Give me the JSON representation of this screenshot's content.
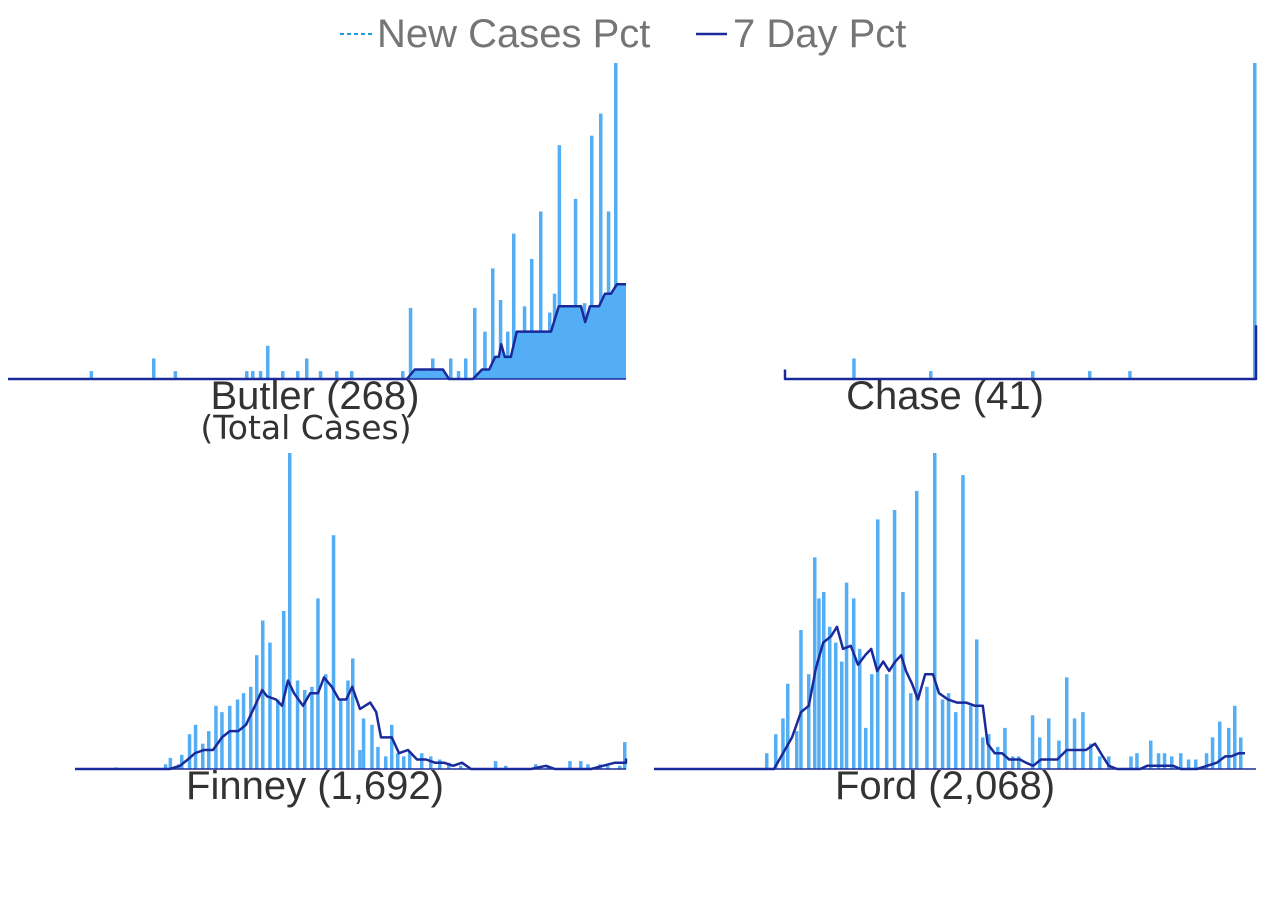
{
  "legend": {
    "items": [
      {
        "label": "New Cases Pct",
        "style": "dashed",
        "color": "#1f9bd7"
      },
      {
        "label": "7 Day Pct",
        "style": "solid",
        "color": "#1a2a9a"
      }
    ]
  },
  "total_cases_note": "(Total Cases)",
  "colors": {
    "bar": "#54aef6",
    "line": "#1a2a9a",
    "axis": "#1a2a9a",
    "legend_text": "#757575",
    "title_text": "#333333"
  },
  "chart_data": [
    {
      "type": "bar",
      "title": "Butler (268)",
      "subtitle": "(Total Cases)",
      "ylim": [
        0,
        100
      ],
      "spikes": [
        {
          "x": 0.136,
          "y": 2.5
        },
        {
          "x": 0.24,
          "y": 6.5
        },
        {
          "x": 0.276,
          "y": 2.5
        },
        {
          "x": 0.395,
          "y": 2.5
        },
        {
          "x": 0.405,
          "y": 2.5
        },
        {
          "x": 0.418,
          "y": 2.5
        },
        {
          "x": 0.43,
          "y": 10.5
        },
        {
          "x": 0.455,
          "y": 2.5
        },
        {
          "x": 0.48,
          "y": 2.5
        },
        {
          "x": 0.495,
          "y": 6.5
        },
        {
          "x": 0.518,
          "y": 2.5
        },
        {
          "x": 0.545,
          "y": 2.5
        },
        {
          "x": 0.57,
          "y": 2.5
        },
        {
          "x": 0.655,
          "y": 2.5
        },
        {
          "x": 0.668,
          "y": 22.5
        },
        {
          "x": 0.705,
          "y": 6.5
        },
        {
          "x": 0.735,
          "y": 6.5
        },
        {
          "x": 0.748,
          "y": 2.5
        },
        {
          "x": 0.76,
          "y": 6.5
        },
        {
          "x": 0.775,
          "y": 22.5
        },
        {
          "x": 0.792,
          "y": 15
        },
        {
          "x": 0.805,
          "y": 35
        },
        {
          "x": 0.818,
          "y": 25
        },
        {
          "x": 0.83,
          "y": 15
        },
        {
          "x": 0.84,
          "y": 46
        },
        {
          "x": 0.852,
          "y": 3
        },
        {
          "x": 0.858,
          "y": 23
        },
        {
          "x": 0.87,
          "y": 38
        },
        {
          "x": 0.885,
          "y": 53
        },
        {
          "x": 0.9,
          "y": 21
        },
        {
          "x": 0.908,
          "y": 27
        },
        {
          "x": 0.916,
          "y": 74
        },
        {
          "x": 0.925,
          "y": 22
        },
        {
          "x": 0.943,
          "y": 57
        },
        {
          "x": 0.958,
          "y": 24
        },
        {
          "x": 0.97,
          "y": 77
        },
        {
          "x": 0.985,
          "y": 84
        },
        {
          "x": 0.998,
          "y": 53
        },
        {
          "x": 1.01,
          "y": 100
        }
      ],
      "line": [
        [
          0.0,
          0
        ],
        [
          0.665,
          0
        ],
        [
          0.678,
          3
        ],
        [
          0.725,
          3
        ],
        [
          0.735,
          0
        ],
        [
          0.775,
          0
        ],
        [
          0.79,
          3
        ],
        [
          0.802,
          3
        ],
        [
          0.812,
          7
        ],
        [
          0.818,
          7
        ],
        [
          0.822,
          11
        ],
        [
          0.828,
          7
        ],
        [
          0.838,
          7
        ],
        [
          0.848,
          15
        ],
        [
          0.905,
          15
        ],
        [
          0.918,
          23
        ],
        [
          0.955,
          23
        ],
        [
          0.962,
          18
        ],
        [
          0.97,
          23
        ],
        [
          0.985,
          23
        ],
        [
          0.995,
          27
        ],
        [
          1.005,
          27
        ],
        [
          1.015,
          30
        ],
        [
          1.03,
          30
        ]
      ],
      "line_fill_under": true
    },
    {
      "type": "bar",
      "title": "Chase (41)",
      "ylim": [
        0,
        100
      ],
      "spikes": [
        {
          "x": 0.112,
          "y": 6.5
        },
        {
          "x": 0.24,
          "y": 2.5
        },
        {
          "x": 0.41,
          "y": 2.5
        },
        {
          "x": 0.505,
          "y": 2.5
        },
        {
          "x": 0.572,
          "y": 2.5
        },
        {
          "x": 0.955,
          "y": 100
        },
        {
          "x": 0.975,
          "y": 10
        },
        {
          "x": 0.985,
          "y": 13
        }
      ],
      "line": [
        [
          -0.115,
          3
        ],
        [
          -0.105,
          0
        ],
        [
          0.935,
          0
        ],
        [
          0.945,
          13
        ],
        [
          0.965,
          13
        ],
        [
          0.985,
          17
        ]
      ],
      "line_fill_under": true
    },
    {
      "type": "bar",
      "title": "Finney (1,692)",
      "ylim": [
        0,
        100
      ],
      "spikes": [
        {
          "x": 0.065,
          "y": 0.5
        },
        {
          "x": 0.148,
          "y": 1.5
        },
        {
          "x": 0.156,
          "y": 3.5
        },
        {
          "x": 0.17,
          "y": 1.5
        },
        {
          "x": 0.175,
          "y": 4.5
        },
        {
          "x": 0.188,
          "y": 11
        },
        {
          "x": 0.198,
          "y": 14
        },
        {
          "x": 0.21,
          "y": 8
        },
        {
          "x": 0.22,
          "y": 12
        },
        {
          "x": 0.232,
          "y": 20
        },
        {
          "x": 0.242,
          "y": 18
        },
        {
          "x": 0.255,
          "y": 20
        },
        {
          "x": 0.268,
          "y": 22
        },
        {
          "x": 0.278,
          "y": 24
        },
        {
          "x": 0.29,
          "y": 26
        },
        {
          "x": 0.3,
          "y": 36
        },
        {
          "x": 0.31,
          "y": 47
        },
        {
          "x": 0.322,
          "y": 40
        },
        {
          "x": 0.335,
          "y": 22
        },
        {
          "x": 0.345,
          "y": 50
        },
        {
          "x": 0.355,
          "y": 100
        },
        {
          "x": 0.368,
          "y": 28
        },
        {
          "x": 0.38,
          "y": 25
        },
        {
          "x": 0.392,
          "y": 26
        },
        {
          "x": 0.402,
          "y": 54
        },
        {
          "x": 0.415,
          "y": 30
        },
        {
          "x": 0.428,
          "y": 74
        },
        {
          "x": 0.44,
          "y": 22
        },
        {
          "x": 0.452,
          "y": 28
        },
        {
          "x": 0.46,
          "y": 35
        },
        {
          "x": 0.472,
          "y": 6
        },
        {
          "x": 0.478,
          "y": 16
        },
        {
          "x": 0.492,
          "y": 14
        },
        {
          "x": 0.502,
          "y": 7
        },
        {
          "x": 0.515,
          "y": 4
        },
        {
          "x": 0.525,
          "y": 14
        },
        {
          "x": 0.535,
          "y": 5
        },
        {
          "x": 0.545,
          "y": 4
        },
        {
          "x": 0.555,
          "y": 5.5
        },
        {
          "x": 0.575,
          "y": 5
        },
        {
          "x": 0.59,
          "y": 4
        },
        {
          "x": 0.605,
          "y": 3
        },
        {
          "x": 0.62,
          "y": 2
        },
        {
          "x": 0.64,
          "y": 1
        },
        {
          "x": 0.698,
          "y": 2.5
        },
        {
          "x": 0.715,
          "y": 1
        },
        {
          "x": 0.765,
          "y": 1.5
        },
        {
          "x": 0.785,
          "y": 1
        },
        {
          "x": 0.822,
          "y": 2.5
        },
        {
          "x": 0.84,
          "y": 2.5
        },
        {
          "x": 0.852,
          "y": 1.5
        },
        {
          "x": 0.872,
          "y": 1.5
        },
        {
          "x": 0.885,
          "y": 1
        },
        {
          "x": 0.905,
          "y": 1
        },
        {
          "x": 0.928,
          "y": 6.5
        },
        {
          "x": 0.942,
          "y": 4.5
        },
        {
          "x": 0.955,
          "y": 4.5
        },
        {
          "x": 0.97,
          "y": 5.5
        },
        {
          "x": 0.982,
          "y": 7
        },
        {
          "x": 0.995,
          "y": 7.5
        },
        {
          "x": 1.015,
          "y": 6
        },
        {
          "x": 1.03,
          "y": 8.5
        }
      ],
      "line": [
        [
          0.0,
          0
        ],
        [
          0.158,
          0
        ],
        [
          0.175,
          1
        ],
        [
          0.188,
          3
        ],
        [
          0.2,
          5
        ],
        [
          0.215,
          6
        ],
        [
          0.23,
          6
        ],
        [
          0.245,
          10
        ],
        [
          0.258,
          12
        ],
        [
          0.272,
          12
        ],
        [
          0.285,
          14
        ],
        [
          0.3,
          20
        ],
        [
          0.312,
          25
        ],
        [
          0.32,
          23
        ],
        [
          0.335,
          22
        ],
        [
          0.345,
          20
        ],
        [
          0.355,
          28
        ],
        [
          0.365,
          24
        ],
        [
          0.38,
          20
        ],
        [
          0.392,
          24
        ],
        [
          0.405,
          24
        ],
        [
          0.415,
          29
        ],
        [
          0.428,
          26
        ],
        [
          0.44,
          22
        ],
        [
          0.452,
          22
        ],
        [
          0.462,
          26
        ],
        [
          0.475,
          19
        ],
        [
          0.492,
          21
        ],
        [
          0.502,
          18
        ],
        [
          0.51,
          10
        ],
        [
          0.528,
          10
        ],
        [
          0.54,
          5
        ],
        [
          0.555,
          6
        ],
        [
          0.57,
          3
        ],
        [
          0.585,
          3
        ],
        [
          0.6,
          2
        ],
        [
          0.615,
          2
        ],
        [
          0.63,
          1
        ],
        [
          0.645,
          2
        ],
        [
          0.66,
          0
        ],
        [
          0.76,
          0
        ],
        [
          0.785,
          1
        ],
        [
          0.8,
          0
        ],
        [
          0.86,
          0
        ],
        [
          0.88,
          1
        ],
        [
          0.9,
          2
        ],
        [
          0.925,
          2
        ],
        [
          0.945,
          3
        ],
        [
          0.96,
          2
        ],
        [
          0.975,
          3
        ],
        [
          0.99,
          2
        ],
        [
          1.005,
          2
        ],
        [
          1.02,
          2
        ],
        [
          1.04,
          2
        ]
      ],
      "line_fill_under": false
    },
    {
      "type": "bar",
      "title": "Ford (2,068)",
      "ylim": [
        0,
        100
      ],
      "spikes": [
        {
          "x": 0.185,
          "y": 5
        },
        {
          "x": 0.2,
          "y": 11
        },
        {
          "x": 0.212,
          "y": 16
        },
        {
          "x": 0.22,
          "y": 27
        },
        {
          "x": 0.235,
          "y": 12
        },
        {
          "x": 0.242,
          "y": 44
        },
        {
          "x": 0.255,
          "y": 30
        },
        {
          "x": 0.265,
          "y": 67
        },
        {
          "x": 0.272,
          "y": 54
        },
        {
          "x": 0.28,
          "y": 56
        },
        {
          "x": 0.29,
          "y": 45
        },
        {
          "x": 0.3,
          "y": 40
        },
        {
          "x": 0.31,
          "y": 34
        },
        {
          "x": 0.318,
          "y": 59
        },
        {
          "x": 0.33,
          "y": 54
        },
        {
          "x": 0.34,
          "y": 38
        },
        {
          "x": 0.35,
          "y": 13
        },
        {
          "x": 0.36,
          "y": 30
        },
        {
          "x": 0.37,
          "y": 79
        },
        {
          "x": 0.385,
          "y": 30
        },
        {
          "x": 0.398,
          "y": 82
        },
        {
          "x": 0.412,
          "y": 56
        },
        {
          "x": 0.425,
          "y": 24
        },
        {
          "x": 0.435,
          "y": 88
        },
        {
          "x": 0.452,
          "y": 26
        },
        {
          "x": 0.465,
          "y": 100
        },
        {
          "x": 0.478,
          "y": 22
        },
        {
          "x": 0.488,
          "y": 24
        },
        {
          "x": 0.5,
          "y": 18
        },
        {
          "x": 0.512,
          "y": 93
        },
        {
          "x": 0.525,
          "y": 20
        },
        {
          "x": 0.535,
          "y": 41
        },
        {
          "x": 0.545,
          "y": 10
        },
        {
          "x": 0.555,
          "y": 11
        },
        {
          "x": 0.57,
          "y": 7
        },
        {
          "x": 0.582,
          "y": 13
        },
        {
          "x": 0.595,
          "y": 4
        },
        {
          "x": 0.605,
          "y": 4
        },
        {
          "x": 0.628,
          "y": 17
        },
        {
          "x": 0.64,
          "y": 10
        },
        {
          "x": 0.655,
          "y": 16
        },
        {
          "x": 0.672,
          "y": 9
        },
        {
          "x": 0.685,
          "y": 29
        },
        {
          "x": 0.698,
          "y": 16
        },
        {
          "x": 0.712,
          "y": 18
        },
        {
          "x": 0.725,
          "y": 8
        },
        {
          "x": 0.74,
          "y": 4
        },
        {
          "x": 0.755,
          "y": 4
        },
        {
          "x": 0.792,
          "y": 4
        },
        {
          "x": 0.802,
          "y": 5
        },
        {
          "x": 0.825,
          "y": 9
        },
        {
          "x": 0.838,
          "y": 5
        },
        {
          "x": 0.848,
          "y": 5
        },
        {
          "x": 0.86,
          "y": 4
        },
        {
          "x": 0.875,
          "y": 5
        },
        {
          "x": 0.888,
          "y": 3
        },
        {
          "x": 0.9,
          "y": 3
        },
        {
          "x": 0.918,
          "y": 5
        },
        {
          "x": 0.928,
          "y": 10
        },
        {
          "x": 0.94,
          "y": 15
        },
        {
          "x": 0.955,
          "y": 13
        },
        {
          "x": 0.965,
          "y": 20
        },
        {
          "x": 0.975,
          "y": 10
        }
      ],
      "line": [
        [
          0.0,
          0
        ],
        [
          0.2,
          0
        ],
        [
          0.215,
          5
        ],
        [
          0.23,
          10
        ],
        [
          0.245,
          18
        ],
        [
          0.258,
          20
        ],
        [
          0.27,
          32
        ],
        [
          0.282,
          40
        ],
        [
          0.295,
          42
        ],
        [
          0.305,
          45
        ],
        [
          0.315,
          38
        ],
        [
          0.328,
          39
        ],
        [
          0.34,
          33
        ],
        [
          0.352,
          36
        ],
        [
          0.362,
          38
        ],
        [
          0.372,
          31
        ],
        [
          0.382,
          34
        ],
        [
          0.392,
          31
        ],
        [
          0.402,
          34
        ],
        [
          0.412,
          36
        ],
        [
          0.42,
          31
        ],
        [
          0.43,
          27
        ],
        [
          0.44,
          22
        ],
        [
          0.452,
          30
        ],
        [
          0.465,
          30
        ],
        [
          0.475,
          24
        ],
        [
          0.49,
          22
        ],
        [
          0.505,
          21
        ],
        [
          0.52,
          21
        ],
        [
          0.535,
          20
        ],
        [
          0.548,
          20
        ],
        [
          0.556,
          8
        ],
        [
          0.568,
          5
        ],
        [
          0.58,
          5
        ],
        [
          0.592,
          3
        ],
        [
          0.61,
          3
        ],
        [
          0.62,
          2
        ],
        [
          0.632,
          1
        ],
        [
          0.645,
          3
        ],
        [
          0.66,
          3
        ],
        [
          0.672,
          3
        ],
        [
          0.688,
          6
        ],
        [
          0.72,
          6
        ],
        [
          0.735,
          8
        ],
        [
          0.748,
          4
        ],
        [
          0.758,
          1
        ],
        [
          0.772,
          0
        ],
        [
          0.81,
          0
        ],
        [
          0.822,
          1
        ],
        [
          0.865,
          1
        ],
        [
          0.878,
          0
        ],
        [
          0.905,
          0
        ],
        [
          0.922,
          1
        ],
        [
          0.938,
          2
        ],
        [
          0.952,
          4
        ],
        [
          0.962,
          4
        ],
        [
          0.975,
          5
        ],
        [
          0.985,
          5
        ]
      ],
      "line_fill_under": false
    }
  ]
}
